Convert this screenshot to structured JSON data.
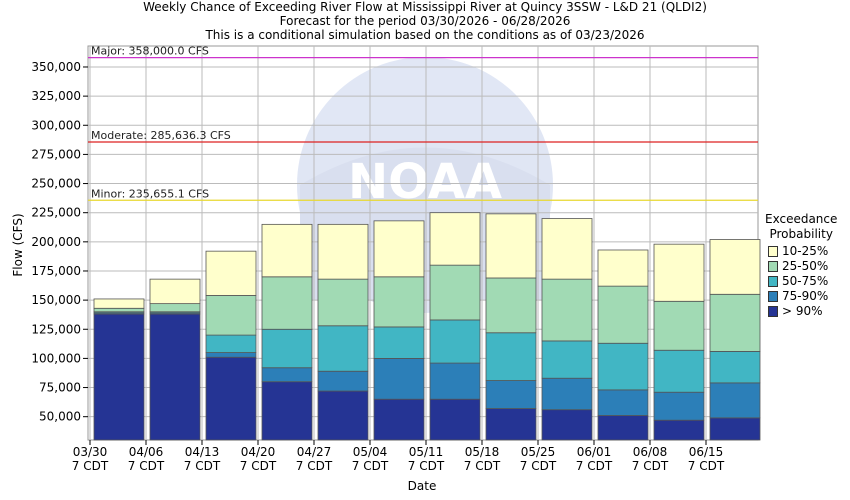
{
  "header": {
    "line1": "Weekly Chance of Exceeding River Flow at Mississippi River at Quincy 3SSW - L&D 21 (QLDI2)",
    "line2": "Forecast for the period 03/30/2026 - 06/28/2026",
    "line3": "This is a conditional simulation based on the conditions as of 03/23/2026"
  },
  "watermark": {
    "text": "NOAA",
    "arc_text": "NATIONAL OCEANIC AND ATMOSPHERIC ADMINISTRATION"
  },
  "legend": {
    "title_line1": "Exceedance",
    "title_line2": "Probability",
    "items": [
      {
        "label": "10-25%",
        "color": "#ffffcc"
      },
      {
        "label": "25-50%",
        "color": "#a1dab4"
      },
      {
        "label": "50-75%",
        "color": "#41b6c4"
      },
      {
        "label": "75-90%",
        "color": "#2c7fb8"
      },
      {
        "label": "> 90%",
        "color": "#253494"
      }
    ]
  },
  "chart_data": {
    "type": "bar",
    "subtype": "stacked-range",
    "xlabel": "Date",
    "ylabel": "Flow (CFS)",
    "ylim": [
      30000,
      368000
    ],
    "yticks": [
      50000,
      75000,
      100000,
      125000,
      150000,
      175000,
      200000,
      225000,
      250000,
      275000,
      300000,
      325000,
      350000
    ],
    "ytick_labels": [
      "50,000",
      "75,000",
      "100,000",
      "125,000",
      "150,000",
      "175,000",
      "200,000",
      "225,000",
      "250,000",
      "275,000",
      "300,000",
      "325,000",
      "350,000"
    ],
    "xtick_labels": [
      {
        "date": "03/30",
        "tz": "7 CDT"
      },
      {
        "date": "04/06",
        "tz": "7 CDT"
      },
      {
        "date": "04/13",
        "tz": "7 CDT"
      },
      {
        "date": "04/20",
        "tz": "7 CDT"
      },
      {
        "date": "04/27",
        "tz": "7 CDT"
      },
      {
        "date": "05/04",
        "tz": "7 CDT"
      },
      {
        "date": "05/11",
        "tz": "7 CDT"
      },
      {
        "date": "05/18",
        "tz": "7 CDT"
      },
      {
        "date": "05/25",
        "tz": "7 CDT"
      },
      {
        "date": "06/01",
        "tz": "7 CDT"
      },
      {
        "date": "06/08",
        "tz": "7 CDT"
      },
      {
        "date": "06/15",
        "tz": "7 CDT"
      }
    ],
    "series": [
      {
        "name": "> 90%",
        "color": "#253494",
        "values": [
          138000,
          138000,
          101000,
          80000,
          72000,
          65000,
          65000,
          57000,
          56000,
          51000,
          47000,
          49000
        ]
      },
      {
        "name": "75-90%",
        "color": "#2c7fb8",
        "values": [
          139000,
          139000,
          105000,
          92000,
          89000,
          100000,
          96000,
          81000,
          83000,
          73000,
          71000,
          79000
        ]
      },
      {
        "name": "50-75%",
        "color": "#41b6c4",
        "values": [
          140000,
          140000,
          120000,
          125000,
          128000,
          127000,
          133000,
          122000,
          115000,
          113000,
          107000,
          106000
        ]
      },
      {
        "name": "25-50%",
        "color": "#a1dab4",
        "values": [
          143000,
          147000,
          154000,
          170000,
          168000,
          170000,
          180000,
          169000,
          168000,
          162000,
          149000,
          155000
        ]
      },
      {
        "name": "10-25%",
        "color": "#ffffcc",
        "values": [
          151000,
          168000,
          192000,
          215000,
          215000,
          218000,
          225000,
          224000,
          220000,
          193000,
          198000,
          202000
        ]
      }
    ],
    "thresholds": [
      {
        "label": "Major: 358,000.0 CFS",
        "value": 358000,
        "color": "#cc33cc"
      },
      {
        "label": "Moderate: 285,636.3 CFS",
        "value": 285636.3,
        "color": "#dd2222"
      },
      {
        "label": "Minor: 235,655.1 CFS",
        "value": 235655.1,
        "color": "#e8d830"
      }
    ],
    "grid": true
  }
}
